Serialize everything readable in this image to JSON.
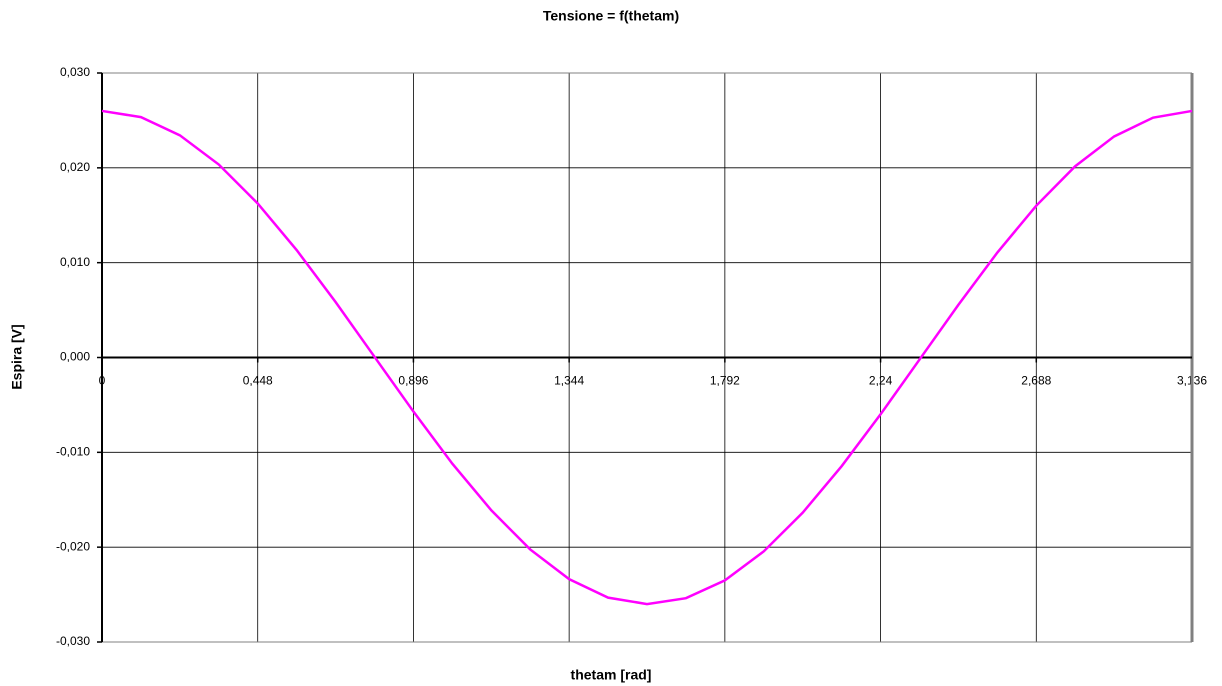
{
  "chart_data": {
    "type": "line",
    "title": "Tensione = f(thetam)",
    "x_label": "thetam [rad]",
    "y_label": "Espira [V]",
    "x": [
      0,
      0.112,
      0.224,
      0.336,
      0.448,
      0.56,
      0.672,
      0.784,
      0.896,
      1.008,
      1.12,
      1.232,
      1.344,
      1.456,
      1.568,
      1.68,
      1.792,
      1.904,
      2.016,
      2.128,
      2.24,
      2.352,
      2.464,
      2.576,
      2.688,
      2.8,
      2.912,
      3.024,
      3.136
    ],
    "series": [
      {
        "name": "Espira",
        "color": "#ff00ff",
        "values": [
          0.026,
          0.02535,
          0.02343,
          0.02035,
          0.01624,
          0.01133,
          0.00585,
          7e-05,
          -0.0057,
          -0.0112,
          -0.01611,
          -0.02024,
          -0.02337,
          -0.02532,
          -0.026,
          -0.02538,
          -0.0235,
          -0.02044,
          -0.01636,
          -0.01146,
          -0.00599,
          -0.00022,
          0.00556,
          0.01107,
          0.01601,
          0.02017,
          0.02331,
          0.02529,
          0.026
        ]
      }
    ],
    "xlim": [
      0,
      3.136
    ],
    "xticks": [
      0,
      {
        "value": 0.448,
        "label": "0,448"
      },
      {
        "value": 0.896,
        "label": "0,896"
      },
      {
        "value": 1.344,
        "label": "1,344"
      },
      {
        "value": 1.792,
        "label": "1,792"
      },
      {
        "value": 2.24,
        "label": "2,24"
      },
      {
        "value": 2.688,
        "label": "2,688"
      },
      {
        "value": 3.136,
        "label": "3,136"
      }
    ],
    "ylim": [
      -0.03,
      0.03
    ],
    "yticks": [
      {
        "value": -0.03,
        "label": "-0,030"
      },
      {
        "value": -0.02,
        "label": "-0,020"
      },
      {
        "value": -0.01,
        "label": "-0,010"
      },
      {
        "value": 0,
        "label": "0,000"
      },
      {
        "value": 0.01,
        "label": "0,010"
      },
      {
        "value": 0.02,
        "label": "0,020"
      },
      {
        "value": 0.03,
        "label": "0,030"
      }
    ],
    "grid": true
  }
}
